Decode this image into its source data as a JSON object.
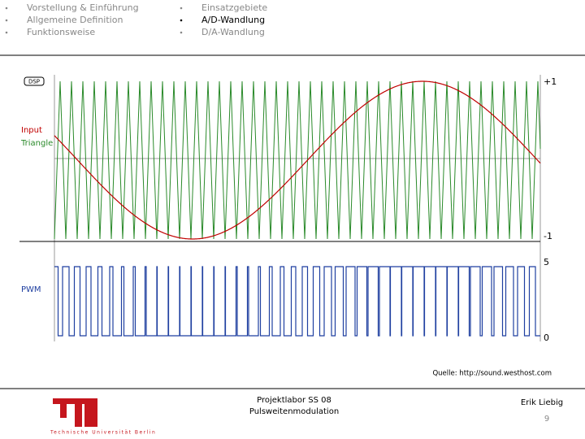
{
  "nav": {
    "left": [
      "Vorstellung & Einführung",
      "Allgemeine Definition",
      "Funktionsweise"
    ],
    "right": [
      "Einsatzgebiete",
      "A/D-Wandlung",
      "D/A-Wandlung"
    ]
  },
  "figure": {
    "badge": "DSP",
    "labels": {
      "input": "Input",
      "triangle": "Triangle",
      "pwm": "PWM"
    },
    "axis": {
      "top": "+1",
      "bottom": "-1",
      "high": "5",
      "low": "0"
    },
    "source": "Quelle: http://sound.westhost.com"
  },
  "footer": {
    "course": "Projektlabor SS 08",
    "topic": "Pulsweitenmodulation",
    "author": "Erik Liebig",
    "page": "9",
    "university": "Technische Universität Berlin"
  }
}
